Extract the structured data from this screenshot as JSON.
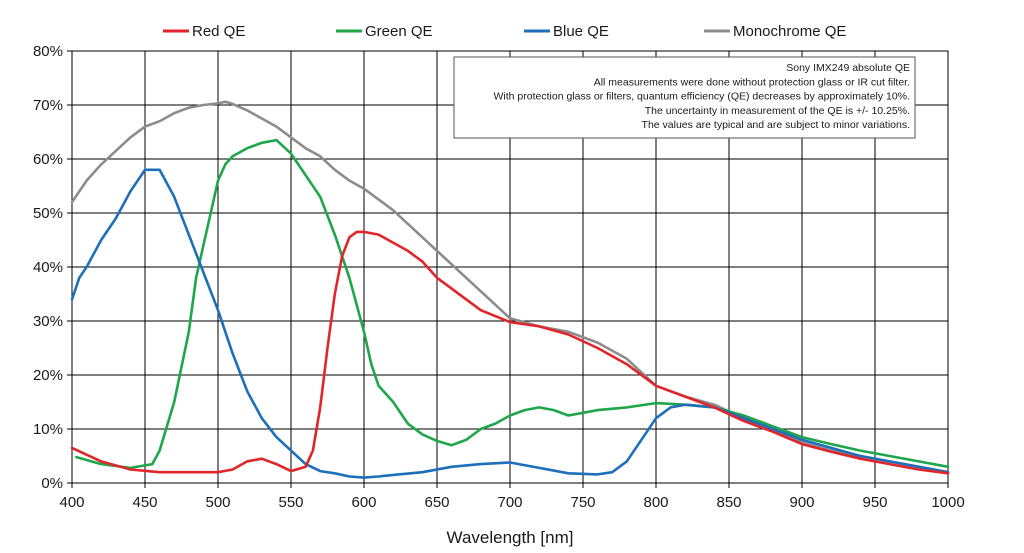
{
  "chart_data": {
    "type": "line",
    "title": "",
    "xlabel": "Wavelength [nm]",
    "ylabel": "",
    "xlim": [
      400,
      1000
    ],
    "ylim": [
      0,
      80
    ],
    "grid": true,
    "legend_position": "top",
    "x_ticks": [
      "400",
      "450",
      "500",
      "550",
      "600",
      "650",
      "700",
      "750",
      "800",
      "850",
      "900",
      "950",
      "1000"
    ],
    "y_ticks": [
      "0%",
      "10%",
      "20%",
      "30%",
      "40%",
      "50%",
      "60%",
      "70%",
      "80%"
    ],
    "annotation": [
      "Sony IMX249 absolute QE",
      "All measurements were done without protection glass or IR cut filter.",
      "With protection glass or filters, quantum efficiency (QE) decreases by approximately 10%.",
      "The uncertainty in measurement of the QE is +/- 10.25%.",
      "The values are typical and are subject to minor variations."
    ],
    "series": [
      {
        "name": "Red QE",
        "color": "#e0262a",
        "x": [
          400,
          420,
          440,
          460,
          480,
          500,
          510,
          520,
          530,
          540,
          550,
          560,
          565,
          570,
          575,
          580,
          585,
          590,
          595,
          600,
          610,
          620,
          630,
          640,
          650,
          660,
          680,
          700,
          720,
          740,
          760,
          780,
          800,
          820,
          840,
          860,
          880,
          900,
          920,
          940,
          960,
          980,
          1000
        ],
        "y": [
          6.5,
          4,
          2.5,
          2,
          2,
          2,
          2.5,
          4,
          4.5,
          3.5,
          2.2,
          3,
          6,
          14,
          25,
          35,
          42,
          45.5,
          46.5,
          46.5,
          46,
          44.5,
          43,
          41,
          38,
          36,
          32,
          29.8,
          29,
          27.5,
          25,
          22,
          18,
          16,
          14,
          11.5,
          9.5,
          7.2,
          5.8,
          4.5,
          3.5,
          2.5,
          1.8
        ]
      },
      {
        "name": "Green QE",
        "color": "#1fa64a",
        "x": [
          403,
          420,
          440,
          455,
          460,
          470,
          480,
          485,
          490,
          495,
          500,
          505,
          510,
          520,
          530,
          540,
          550,
          560,
          570,
          580,
          590,
          595,
          600,
          605,
          610,
          620,
          630,
          640,
          650,
          660,
          665,
          670,
          680,
          690,
          700,
          710,
          720,
          730,
          740,
          750,
          760,
          780,
          800,
          820,
          840,
          860,
          880,
          900,
          920,
          940,
          960,
          980,
          1000
        ],
        "y": [
          4.8,
          3.5,
          2.8,
          3.5,
          6,
          15,
          28,
          38,
          44,
          50,
          56,
          59,
          60.5,
          62,
          63,
          63.5,
          61,
          57,
          53,
          46,
          38,
          33,
          28,
          22,
          18,
          15,
          11,
          9,
          7.8,
          7,
          7.5,
          8,
          10,
          11,
          12.5,
          13.5,
          14,
          13.5,
          12.5,
          13,
          13.5,
          14,
          14.8,
          14.5,
          14,
          12.5,
          10.5,
          8.5,
          7.2,
          6,
          5,
          4,
          3
        ]
      },
      {
        "name": "Blue QE",
        "color": "#1e6fba",
        "x": [
          400,
          405,
          410,
          420,
          430,
          440,
          450,
          460,
          470,
          480,
          490,
          500,
          510,
          520,
          530,
          540,
          550,
          560,
          570,
          580,
          590,
          600,
          610,
          620,
          640,
          660,
          680,
          700,
          720,
          740,
          760,
          770,
          780,
          790,
          800,
          810,
          820,
          840,
          860,
          880,
          900,
          920,
          940,
          960,
          980,
          1000
        ],
        "y": [
          34,
          38,
          40,
          45,
          49,
          54,
          58,
          58,
          53,
          46,
          39,
          32,
          24,
          17,
          12,
          8.5,
          6,
          3.5,
          2.2,
          1.8,
          1.2,
          1,
          1.2,
          1.5,
          2,
          3,
          3.5,
          3.8,
          2.8,
          1.8,
          1.6,
          2,
          4,
          8,
          12,
          14,
          14.5,
          14,
          12,
          10,
          8,
          6.5,
          5,
          4,
          3,
          2
        ]
      },
      {
        "name": "Monochrome QE",
        "color": "#8c8c8c",
        "x": [
          400,
          410,
          420,
          430,
          440,
          450,
          460,
          470,
          480,
          490,
          500,
          505,
          510,
          520,
          530,
          540,
          550,
          560,
          570,
          580,
          590,
          600,
          610,
          620,
          630,
          640,
          650,
          660,
          670,
          680,
          690,
          700,
          720,
          740,
          760,
          780,
          800,
          820,
          840,
          860,
          880,
          900,
          920,
          940,
          960,
          980,
          1000
        ],
        "y": [
          52,
          56,
          59,
          61.5,
          64,
          66,
          67,
          68.5,
          69.5,
          70,
          70.3,
          70.6,
          70.2,
          69,
          67.5,
          66,
          64,
          62,
          60.5,
          58,
          56,
          54.5,
          52.5,
          50.5,
          48,
          45.5,
          43,
          40.5,
          38,
          35.5,
          33,
          30.5,
          29,
          28,
          26,
          23,
          18,
          16,
          14.5,
          12,
          10,
          7.5,
          6,
          5,
          4,
          3,
          2
        ]
      }
    ]
  }
}
